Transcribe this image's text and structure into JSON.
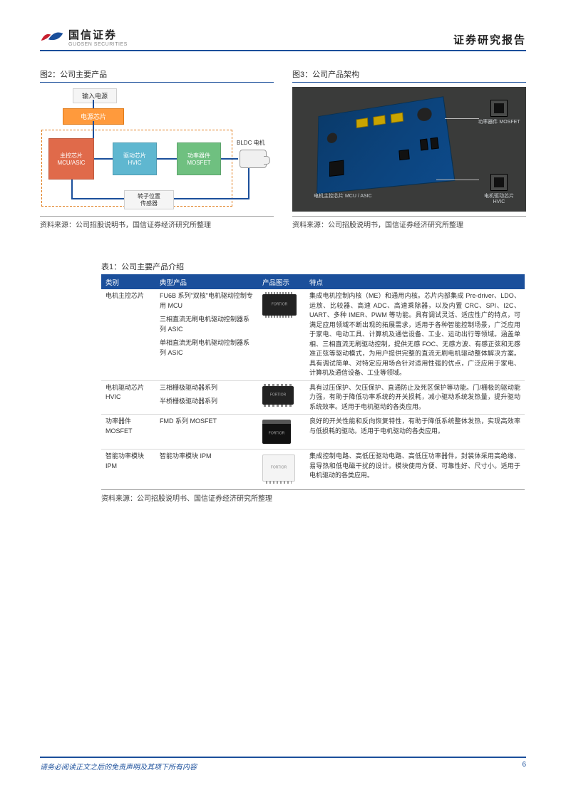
{
  "header": {
    "logo_cn": "国信证券",
    "logo_en": "GUOSEN SECURITIES",
    "title": "证券研究报告"
  },
  "colors": {
    "brand_blue": "#1b4f9b",
    "logo_red": "#c8202f",
    "orange": "#ff9a3c",
    "mcu_box": "#e06a4a",
    "hvic_box": "#5fb7d0",
    "mosfet_box": "#6fc080",
    "pcb_bg": "#3a3b3a"
  },
  "figure2": {
    "caption": "图2：公司主要产品",
    "input_label": "输入电源",
    "power_chip": "电源芯片",
    "mcu_line1": "主控芯片",
    "mcu_line2": "MCU/ASIC",
    "hvic_line1": "驱动芯片",
    "hvic_line2": "HVIC",
    "mosfet_line1": "功率器件",
    "mosfet_line2": "MOSFET",
    "motor_label": "BLDC 电机",
    "sensor_line1": "转子位置",
    "sensor_line2": "传感器",
    "source": "资料来源：公司招股说明书，国信证券经济研究所整理"
  },
  "figure3": {
    "caption": "图3：公司产品架构",
    "label_mcu": "电机主控芯片 MCU / ASIC",
    "label_mosfet": "功率器件 MOSFET",
    "label_hvic": "电机驱动芯片 HVIC",
    "source": "资料来源：公司招股说明书，国信证券经济研究所整理"
  },
  "table": {
    "caption": "表1：公司主要产品介绍",
    "headers": [
      "类别",
      "典型产品",
      "产品图示",
      "特点"
    ],
    "rows": [
      {
        "category": "电机主控芯片",
        "products": [
          "FU6B 系列\"双核\"电机驱动控制专用 MCU",
          "三相直流无刷电机驱动控制器系列 ASIC",
          "单相直流无刷电机驱动控制器系列 ASIC"
        ],
        "img_type": "qfp",
        "desc": "集成电机控制内核（ME）和通用内核。芯片内部集成 Pre-driver、LDO、运放、比较器、高速 ADC、高速乘除器，以及内置 CRC、SPI、I2C、UART、多种 IMER、PWM 等功能。具有调试灵活、适应性广的特点，可满足应用领域不断出现的拓展需求，适用于各种智能控制场景，广泛应用于家电、电动工具、计算机及通信设备、工业、运动出行等领域。涵盖单相、三相直流无刷驱动控制，提供无感 FOC、无感方波、有感正弦和无感准正弦等驱动模式，为用户提供完整的直流无刷电机驱动整体解决方案。具有调试简单、对特定应用场合针对适用性强的优点，广泛应用于家电、计算机及通信设备、工业等领域。"
      },
      {
        "category": "电机驱动芯片HVIC",
        "products": [
          "三相栅极驱动器系列",
          "半桥栅极驱动器系列"
        ],
        "img_type": "soic",
        "desc": "具有过压保护、欠压保护、直通防止及死区保护等功能。门/栅极的驱动能力强，有助于降低功率系统的开关损耗，减小驱动系统发热量，提升驱动系统效率。适用于电机驱动的各类应用。"
      },
      {
        "category": "功率器件MOSFET",
        "products": [
          "FMD 系列 MOSFET"
        ],
        "img_type": "to",
        "desc": "良好的开关性能和反向恢复特性，有助于降低系统整体发热，实现高效率与低损耗的驱动。适用于电机驱动的各类应用。"
      },
      {
        "category": "智能功率模块IPM",
        "products": [
          "智能功率模块 IPM"
        ],
        "img_type": "module",
        "desc": "集成控制电路、高低压驱动电路、高低压功率器件。封装体采用高绝缘、易导热和低电磁干扰的设计。模块使用方便、可靠性好、尺寸小。适用于电机驱动的各类应用。"
      }
    ],
    "brand": "FORTIOR",
    "source": "资料来源：公司招股说明书、国信证券经济研究所整理"
  },
  "footer": {
    "disclaimer": "请务必阅读正文之后的免责声明及其项下所有内容",
    "page": "6"
  }
}
